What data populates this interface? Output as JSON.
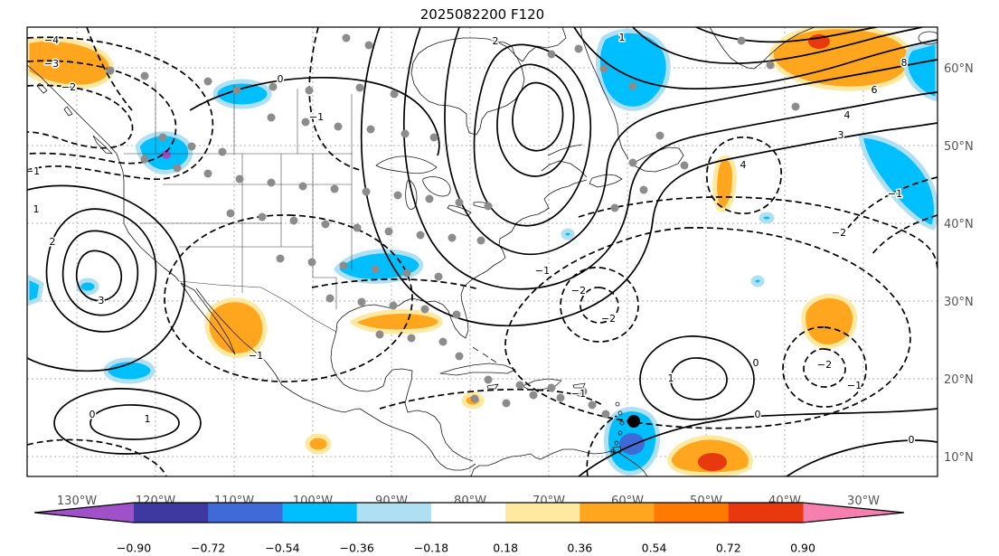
{
  "figure": {
    "title": "2025082200 F120"
  },
  "axes": {
    "x_ticks": [
      {
        "label": "130°W",
        "x": 85
      },
      {
        "label": "120°W",
        "x": 172
      },
      {
        "label": "110°W",
        "x": 259
      },
      {
        "label": "100°W",
        "x": 346
      },
      {
        "label": "90°W",
        "x": 433
      },
      {
        "label": "80°W",
        "x": 520
      },
      {
        "label": "70°W",
        "x": 607
      },
      {
        "label": "60°W",
        "x": 694
      },
      {
        "label": "50°W",
        "x": 781
      },
      {
        "label": "40°W",
        "x": 868
      },
      {
        "label": "30°W",
        "x": 955
      }
    ],
    "y_ticks": [
      {
        "label": "60°N",
        "y": 75
      },
      {
        "label": "50°N",
        "y": 161
      },
      {
        "label": "40°N",
        "y": 247
      },
      {
        "label": "30°N",
        "y": 333
      },
      {
        "label": "20°N",
        "y": 419
      },
      {
        "label": "10°N",
        "y": 505
      }
    ]
  },
  "colorbar": {
    "tick_labels": [
      "−0.90",
      "−0.72",
      "−0.54",
      "−0.36",
      "−0.18",
      "0.18",
      "0.36",
      "0.54",
      "0.72",
      "0.90"
    ],
    "levels": [
      -0.9,
      -0.72,
      -0.54,
      -0.36,
      -0.18,
      0.18,
      0.36,
      0.54,
      0.72,
      0.9
    ],
    "segment_colors": [
      "#3D39A1",
      "#3F6AD8",
      "#00BFFF",
      "#AEDFF2",
      "#FFFFFF",
      "#FFE9A0",
      "#FFA51E",
      "#FF7A00",
      "#E8380D"
    ],
    "extend_left_color": "#A050C8",
    "extend_right_color": "#F580B0",
    "extend": "both"
  },
  "chart_data": {
    "type": "contour_map",
    "title": "2025082200 F120",
    "description": "Contour analysis over North America and North Atlantic with shaded correlation/anomaly regions",
    "x_tick_labels": [
      "130°W",
      "120°W",
      "110°W",
      "100°W",
      "90°W",
      "80°W",
      "70°W",
      "60°W",
      "50°W",
      "40°W",
      "30°W"
    ],
    "y_tick_labels": [
      "10°N",
      "20°N",
      "30°N",
      "40°N",
      "50°N",
      "60°N"
    ],
    "grid": "dotted 10-degree latitude/longitude graticule",
    "legend_position": "bottom horizontal colorbar with both-end extend arrows",
    "contour_line_levels_labeled": [
      -4,
      -3,
      -2,
      -1,
      0,
      1,
      2,
      3,
      4,
      6,
      8
    ],
    "contour_style": {
      "positive": "solid",
      "negative": "dashed",
      "color": "#000000"
    },
    "shading_levels": [
      -0.9,
      -0.72,
      -0.54,
      -0.36,
      -0.18,
      0.18,
      0.36,
      0.54,
      0.72,
      0.9
    ],
    "contour_label_positions": [
      {
        "t": "−4",
        "x": 57,
        "y": 45
      },
      {
        "t": "−3",
        "x": 57,
        "y": 71
      },
      {
        "t": "−2",
        "x": 76,
        "y": 97
      },
      {
        "t": "0",
        "x": 310,
        "y": 88
      },
      {
        "t": "−1",
        "x": 350,
        "y": 130
      },
      {
        "t": "2",
        "x": 548,
        "y": 46
      },
      {
        "t": "1",
        "x": 688,
        "y": 42
      },
      {
        "t": "1",
        "x": 40,
        "y": 232
      },
      {
        "t": "2",
        "x": 58,
        "y": 268
      },
      {
        "t": "3",
        "x": 112,
        "y": 333
      },
      {
        "t": "−1",
        "x": 36,
        "y": 190
      },
      {
        "t": "0",
        "x": 102,
        "y": 459
      },
      {
        "t": "1",
        "x": 163,
        "y": 464
      },
      {
        "t": "−1",
        "x": 283,
        "y": 394
      },
      {
        "t": "−2",
        "x": 640,
        "y": 322
      },
      {
        "t": "−2",
        "x": 673,
        "y": 353
      },
      {
        "t": "−1",
        "x": 600,
        "y": 300
      },
      {
        "t": "−2",
        "x": 928,
        "y": 258
      },
      {
        "t": "4",
        "x": 822,
        "y": 183
      },
      {
        "t": "3",
        "x": 930,
        "y": 150
      },
      {
        "t": "4",
        "x": 937,
        "y": 128
      },
      {
        "t": "6",
        "x": 967,
        "y": 100
      },
      {
        "t": "8",
        "x": 1000,
        "y": 70
      },
      {
        "t": "−1",
        "x": 990,
        "y": 215
      },
      {
        "t": "0",
        "x": 836,
        "y": 402
      },
      {
        "t": "1",
        "x": 742,
        "y": 419
      },
      {
        "t": "−1",
        "x": 945,
        "y": 427
      },
      {
        "t": "−2",
        "x": 912,
        "y": 404
      },
      {
        "t": "0",
        "x": 838,
        "y": 459
      },
      {
        "t": "0",
        "x": 1008,
        "y": 487
      },
      {
        "t": "−1",
        "x": 640,
        "y": 436
      }
    ],
    "station_dot_color": "#8C8C8C",
    "station_dots": [
      [
        383,
        42
      ],
      [
        408,
        50
      ],
      [
        122,
        78
      ],
      [
        160,
        84
      ],
      [
        230,
        90
      ],
      [
        262,
        100
      ],
      [
        302,
        96
      ],
      [
        342,
        100
      ],
      [
        398,
        97
      ],
      [
        436,
        104
      ],
      [
        610,
        60
      ],
      [
        640,
        54
      ],
      [
        668,
        76
      ],
      [
        700,
        95
      ],
      [
        820,
        45
      ],
      [
        852,
        72
      ],
      [
        880,
        118
      ],
      [
        300,
        130
      ],
      [
        338,
        135
      ],
      [
        374,
        140
      ],
      [
        410,
        143
      ],
      [
        448,
        148
      ],
      [
        480,
        152
      ],
      [
        730,
        150
      ],
      [
        757,
        183
      ],
      [
        700,
        180
      ],
      [
        180,
        152
      ],
      [
        212,
        162
      ],
      [
        246,
        168
      ],
      [
        160,
        176
      ],
      [
        196,
        186
      ],
      [
        230,
        192
      ],
      [
        265,
        198
      ],
      [
        300,
        202
      ],
      [
        335,
        206
      ],
      [
        370,
        209
      ],
      [
        405,
        212
      ],
      [
        440,
        216
      ],
      [
        475,
        220
      ],
      [
        508,
        224
      ],
      [
        540,
        228
      ],
      [
        680,
        230
      ],
      [
        712,
        210
      ],
      [
        255,
        236
      ],
      [
        290,
        240
      ],
      [
        325,
        244
      ],
      [
        360,
        248
      ],
      [
        395,
        252
      ],
      [
        430,
        256
      ],
      [
        465,
        260
      ],
      [
        500,
        263
      ],
      [
        532,
        266
      ],
      [
        310,
        286
      ],
      [
        345,
        290
      ],
      [
        380,
        294
      ],
      [
        415,
        298
      ],
      [
        450,
        302
      ],
      [
        485,
        306
      ],
      [
        365,
        330
      ],
      [
        400,
        334
      ],
      [
        435,
        338
      ],
      [
        470,
        342
      ],
      [
        505,
        348
      ],
      [
        420,
        370
      ],
      [
        455,
        374
      ],
      [
        490,
        378
      ],
      [
        508,
        394
      ],
      [
        540,
        420
      ],
      [
        575,
        426
      ],
      [
        610,
        429
      ],
      [
        645,
        433
      ],
      [
        525,
        441
      ],
      [
        560,
        446
      ],
      [
        590,
        437
      ],
      [
        620,
        440
      ],
      [
        655,
        448
      ],
      [
        670,
        458
      ]
    ],
    "highlight_dot": {
      "x": 701,
      "y": 466,
      "color": "#000000"
    }
  }
}
